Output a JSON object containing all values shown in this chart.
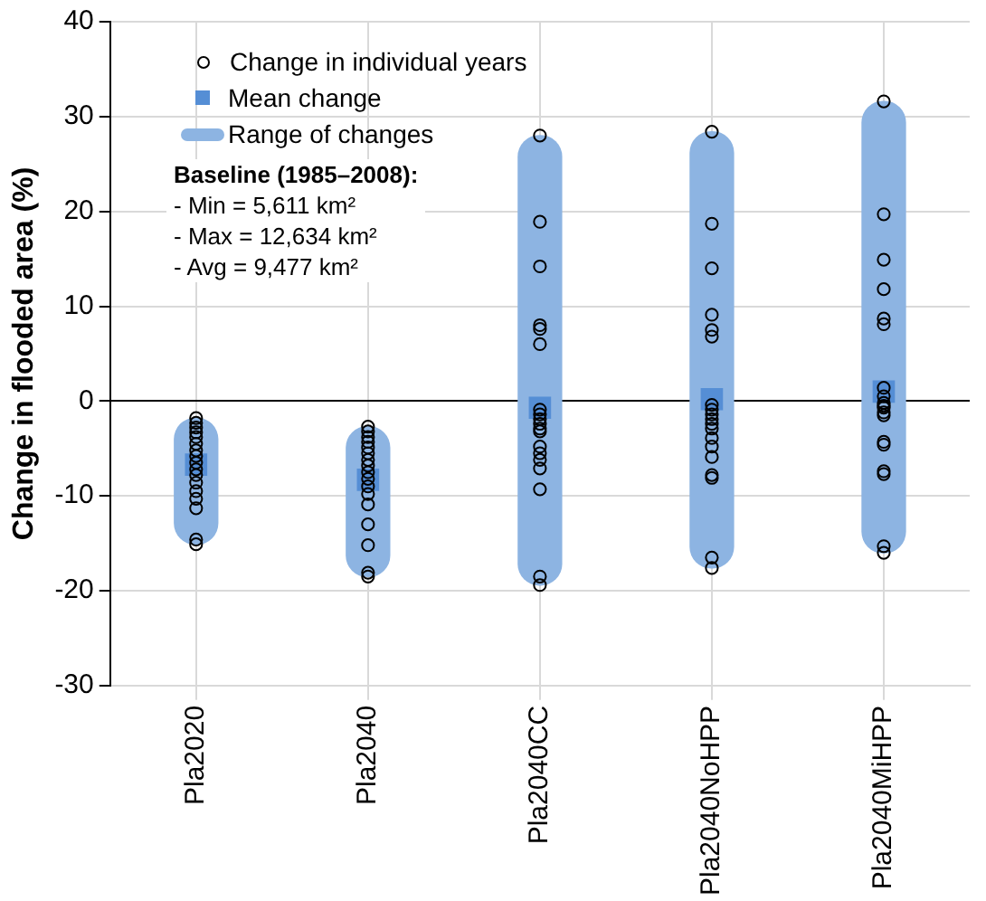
{
  "chart_data": {
    "type": "bar",
    "ylabel": "Change in flooded area (%)",
    "categories": [
      "Pla2020",
      "Pla2040",
      "Pla2040CC",
      "Pla2040NoHPP",
      "Pla2040MiHPP"
    ],
    "series": [
      {
        "name": "Range of changes",
        "color": "#8db4e2",
        "base": [
          -15.1,
          -18.5,
          -19.4,
          -17.6,
          -16.0
        ],
        "values": [
          13.3,
          15.8,
          47.4,
          46.0,
          47.6
        ]
      },
      {
        "name": "Change in individual years",
        "type": "scatter",
        "color": "#000000",
        "marker": "circle",
        "x": [
          "Pla2020",
          "Pla2020",
          "Pla2020",
          "Pla2020",
          "Pla2020",
          "Pla2020",
          "Pla2020",
          "Pla2020",
          "Pla2020",
          "Pla2020",
          "Pla2020",
          "Pla2020",
          "Pla2020",
          "Pla2020",
          "Pla2020",
          "Pla2020",
          "Pla2020",
          "Pla2040",
          "Pla2040",
          "Pla2040",
          "Pla2040",
          "Pla2040",
          "Pla2040",
          "Pla2040",
          "Pla2040",
          "Pla2040",
          "Pla2040",
          "Pla2040",
          "Pla2040",
          "Pla2040",
          "Pla2040",
          "Pla2040",
          "Pla2040",
          "Pla2040",
          "Pla2040CC",
          "Pla2040CC",
          "Pla2040CC",
          "Pla2040CC",
          "Pla2040CC",
          "Pla2040CC",
          "Pla2040CC",
          "Pla2040CC",
          "Pla2040CC",
          "Pla2040CC",
          "Pla2040CC",
          "Pla2040CC",
          "Pla2040CC",
          "Pla2040CC",
          "Pla2040CC",
          "Pla2040CC",
          "Pla2040CC",
          "Pla2040CC",
          "Pla2040CC",
          "Pla2040NoHPP",
          "Pla2040NoHPP",
          "Pla2040NoHPP",
          "Pla2040NoHPP",
          "Pla2040NoHPP",
          "Pla2040NoHPP",
          "Pla2040NoHPP",
          "Pla2040NoHPP",
          "Pla2040NoHPP",
          "Pla2040NoHPP",
          "Pla2040NoHPP",
          "Pla2040NoHPP",
          "Pla2040NoHPP",
          "Pla2040NoHPP",
          "Pla2040NoHPP",
          "Pla2040NoHPP",
          "Pla2040NoHPP",
          "Pla2040NoHPP",
          "Pla2040NoHPP",
          "Pla2040MiHPP",
          "Pla2040MiHPP",
          "Pla2040MiHPP",
          "Pla2040MiHPP",
          "Pla2040MiHPP",
          "Pla2040MiHPP",
          "Pla2040MiHPP",
          "Pla2040MiHPP",
          "Pla2040MiHPP",
          "Pla2040MiHPP",
          "Pla2040MiHPP",
          "Pla2040MiHPP",
          "Pla2040MiHPP",
          "Pla2040MiHPP",
          "Pla2040MiHPP",
          "Pla2040MiHPP",
          "Pla2040MiHPP",
          "Pla2040MiHPP",
          "Pla2040MiHPP"
        ],
        "values": [
          -1.8,
          -2.3,
          -2.8,
          -3.3,
          -3.8,
          -4.5,
          -5.2,
          -5.8,
          -6.5,
          -7.2,
          -7.8,
          -8.6,
          -9.5,
          -10.3,
          -11.3,
          -14.6,
          -15.1,
          -2.7,
          -3.2,
          -3.8,
          -4.3,
          -4.9,
          -5.5,
          -6.2,
          -6.8,
          -7.5,
          -8.2,
          -9.0,
          -9.8,
          -10.9,
          -13.0,
          -15.2,
          -18.1,
          -18.5,
          28.0,
          18.9,
          14.2,
          8.0,
          7.6,
          6.0,
          -0.9,
          -1.4,
          -1.9,
          -2.4,
          -2.9,
          -3.2,
          -4.8,
          -5.5,
          -6.2,
          -7.1,
          -9.3,
          -18.5,
          -19.4,
          28.4,
          18.7,
          14.0,
          9.1,
          7.5,
          6.8,
          -0.4,
          -0.9,
          -1.4,
          -1.9,
          -2.4,
          -2.9,
          -3.9,
          -4.8,
          -5.9,
          -7.8,
          -8.1,
          -16.5,
          -17.6,
          31.6,
          19.7,
          14.9,
          11.8,
          8.7,
          8.1,
          1.4,
          0.5,
          -0.2,
          -0.5,
          -0.7,
          -1.2,
          -1.5,
          -4.3,
          -4.6,
          -7.4,
          -7.7,
          -15.3,
          -16.0
        ]
      },
      {
        "name": "Mean change",
        "type": "scatter",
        "color": "#558ed5",
        "marker": "square",
        "x": [
          "Pla2020",
          "Pla2040",
          "Pla2040CC",
          "Pla2040NoHPP",
          "Pla2040MiHPP"
        ],
        "values": [
          -6.7,
          -8.3,
          -0.7,
          0.2,
          1.0
        ]
      }
    ],
    "ylim": [
      -30,
      40
    ],
    "yticks": [
      -30,
      -20,
      -10,
      0,
      10,
      20,
      30,
      40
    ],
    "grid": true,
    "legend": "top left",
    "annotations": [
      "Baseline (1985–2008):",
      "- Min = 5,611 km²",
      "- Max = 12,634 km²",
      "- Avg = 9,477 km²"
    ]
  }
}
